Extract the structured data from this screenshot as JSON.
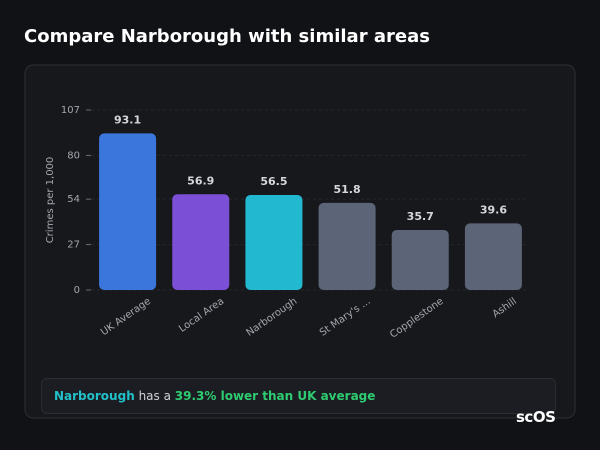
{
  "chart_data": {
    "type": "bar",
    "title": "Compare Narborough with similar areas",
    "y_label": "Crimes per 1,000",
    "categories": [
      "UK Average",
      "Local Area",
      "Narborough",
      "St Mary's ...",
      "Copplestone",
      "Ashill"
    ],
    "values": [
      93.1,
      56.9,
      56.5,
      51.8,
      35.7,
      39.6
    ],
    "colors": [
      "#3a76db",
      "#7b4fd6",
      "#22b8cf",
      "#5b6577",
      "#5b6577",
      "#5b6577"
    ],
    "ylim": [
      0,
      107
    ],
    "yticks": [
      0,
      27,
      54,
      80,
      107
    ],
    "grid": true,
    "summary": {
      "area": "Narborough",
      "text": "has a",
      "highlight": "39.3% lower than UK average"
    },
    "logo": "scOS"
  }
}
